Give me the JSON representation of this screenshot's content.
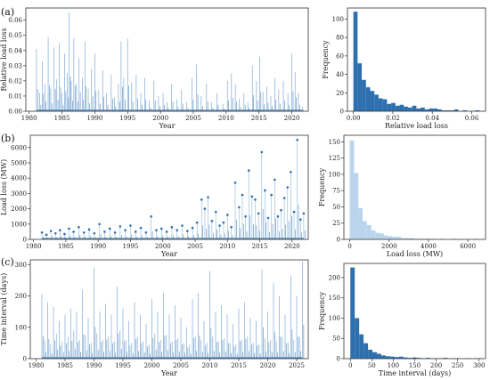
{
  "panels": [
    {
      "label": "(a)"
    },
    {
      "label": "(b)"
    },
    {
      "label": "(c)"
    }
  ],
  "colors": {
    "dark_blue": "#2e6fae",
    "light_blue": "#b9d4ec",
    "line_blue": "#8fb6dd"
  },
  "chart_data": [
    {
      "id": "a_ts",
      "panel": "a",
      "type": "bar",
      "style": "spikes",
      "xlabel": "Year",
      "ylabel": "Relative load loss",
      "xlim": [
        1979.5,
        2022.5
      ],
      "ylim": [
        0,
        0.068
      ],
      "xticks": [
        1980,
        1985,
        1990,
        1995,
        2000,
        2005,
        2010,
        2015,
        2020
      ],
      "yticks": [
        0.0,
        0.01,
        0.02,
        0.03,
        0.04,
        0.05,
        0.06
      ],
      "ytick_labels": [
        "0.00",
        "0.01",
        "0.02",
        "0.03",
        "0.04",
        "0.05",
        "0.06"
      ],
      "x": [
        1981.1,
        1981.6,
        1982.0,
        1982.4,
        1982.9,
        1983.3,
        1983.8,
        1984.2,
        1984.6,
        1985.0,
        1985.4,
        1985.8,
        1986.1,
        1986.4,
        1986.8,
        1987.2,
        1987.6,
        1988.1,
        1988.5,
        1989.0,
        1989.5,
        1990.0,
        1990.6,
        1991.2,
        1991.8,
        1992.5,
        1993.0,
        1993.6,
        1994.0,
        1994.4,
        1995.0,
        1995.6,
        1996.3,
        1997.0,
        1997.6,
        1998.3,
        1999.0,
        1999.7,
        2000.4,
        2001.0,
        2001.7,
        2002.5,
        2003.2,
        2004.0,
        2004.8,
        2005.5,
        2006.2,
        2007.0,
        2007.8,
        2008.6,
        2009.5,
        2010.2,
        2010.8,
        2011.4,
        2012.0,
        2012.7,
        2013.3,
        2014.0,
        2014.6,
        2015.1,
        2015.6,
        2016.2,
        2016.8,
        2017.4,
        2018.0,
        2018.7,
        2019.4,
        2020.0,
        2020.5,
        2021.0,
        2021.6
      ],
      "values": [
        0.041,
        0.012,
        0.033,
        0.018,
        0.049,
        0.015,
        0.042,
        0.021,
        0.045,
        0.012,
        0.038,
        0.025,
        0.065,
        0.02,
        0.048,
        0.018,
        0.035,
        0.022,
        0.046,
        0.015,
        0.028,
        0.038,
        0.014,
        0.027,
        0.012,
        0.024,
        0.009,
        0.018,
        0.046,
        0.022,
        0.048,
        0.019,
        0.024,
        0.012,
        0.022,
        0.007,
        0.02,
        0.01,
        0.012,
        0.006,
        0.018,
        0.008,
        0.014,
        0.006,
        0.022,
        0.031,
        0.01,
        0.018,
        0.006,
        0.012,
        0.005,
        0.02,
        0.025,
        0.018,
        0.008,
        0.012,
        0.006,
        0.03,
        0.02,
        0.036,
        0.013,
        0.016,
        0.01,
        0.022,
        0.014,
        0.02,
        0.012,
        0.038,
        0.026,
        0.012,
        0.003
      ]
    },
    {
      "id": "a_hist",
      "panel": "a",
      "type": "bar",
      "style": "histogram",
      "xlabel": "Relative load loss",
      "ylabel": "Frequency",
      "xlim": [
        -0.003,
        0.067
      ],
      "ylim": [
        0,
        112
      ],
      "xticks": [
        0.0,
        0.02,
        0.04,
        0.06
      ],
      "xtick_labels": [
        "0.00",
        "0.02",
        "0.04",
        "0.06"
      ],
      "yticks": [
        0,
        20,
        40,
        60,
        80,
        100
      ],
      "bin_start": 0.0,
      "bin_width": 0.00213,
      "values": [
        108,
        52,
        34,
        26,
        22,
        18,
        14,
        13,
        8,
        9,
        6,
        7,
        5,
        4,
        6,
        3,
        4,
        2,
        3,
        3,
        2,
        1,
        1,
        1,
        2,
        0,
        1,
        0,
        0,
        1
      ]
    },
    {
      "id": "b_ts",
      "panel": "b",
      "type": "scatter",
      "style": "stems",
      "xlabel": "Year",
      "ylabel": "Load loss (MW)",
      "xlim": [
        1979.5,
        2022.5
      ],
      "ylim": [
        0,
        6800
      ],
      "xticks": [
        1980,
        1985,
        1990,
        1995,
        2000,
        2005,
        2010,
        2015,
        2020
      ],
      "yticks": [
        0,
        1000,
        2000,
        3000,
        4000,
        5000,
        6000
      ],
      "x": [
        1981.3,
        1982.0,
        1982.7,
        1983.4,
        1984.1,
        1984.8,
        1985.5,
        1986.2,
        1987.0,
        1987.8,
        1988.6,
        1989.4,
        1990.2,
        1991.0,
        1991.8,
        1992.6,
        1993.4,
        1994.2,
        1995.0,
        1995.8,
        1996.6,
        1997.4,
        1998.2,
        1999.0,
        1999.8,
        2000.6,
        2001.4,
        2002.2,
        2003.0,
        2003.8,
        2004.6,
        2005.3,
        2006.0,
        2006.5,
        2007.0,
        2007.6,
        2008.2,
        2008.8,
        2009.4,
        2010.0,
        2010.6,
        2011.2,
        2011.8,
        2012.3,
        2012.8,
        2013.3,
        2013.8,
        2014.3,
        2014.8,
        2015.3,
        2015.8,
        2016.3,
        2016.8,
        2017.3,
        2017.8,
        2018.3,
        2018.8,
        2019.3,
        2019.8,
        2020.3,
        2020.8,
        2021.3,
        2021.8
      ],
      "values": [
        450,
        300,
        550,
        400,
        600,
        350,
        700,
        500,
        800,
        450,
        650,
        400,
        1000,
        500,
        700,
        450,
        850,
        600,
        900,
        500,
        750,
        450,
        1500,
        600,
        700,
        500,
        800,
        600,
        900,
        550,
        750,
        1100,
        2600,
        2000,
        2750,
        1200,
        1800,
        900,
        1100,
        1600,
        800,
        3700,
        2100,
        2900,
        1500,
        4500,
        2800,
        2600,
        1700,
        5700,
        3200,
        1400,
        2900,
        3900,
        1500,
        1900,
        2700,
        3400,
        4400,
        1800,
        6500,
        1300,
        1700
      ]
    },
    {
      "id": "b_hist",
      "panel": "b",
      "type": "bar",
      "style": "histogram",
      "xlabel": "Load loss (MW)",
      "ylabel": "Frequency",
      "xlim": [
        -300,
        6900
      ],
      "ylim": [
        0,
        160
      ],
      "xticks": [
        0,
        2000,
        4000,
        6000
      ],
      "yticks": [
        0,
        25,
        50,
        75,
        100,
        125,
        150
      ],
      "bin_start": 0,
      "bin_width": 217,
      "values": [
        152,
        102,
        48,
        28,
        22,
        14,
        10,
        9,
        6,
        5,
        4,
        4,
        2,
        2,
        2,
        1,
        1,
        1,
        1,
        1,
        0,
        1,
        0,
        0,
        1,
        0,
        0,
        0,
        0,
        1
      ]
    },
    {
      "id": "c_ts",
      "panel": "c",
      "type": "bar",
      "style": "spikes",
      "xlabel": "Year",
      "ylabel": "Time interval (days)",
      "xlim": [
        1979.0,
        2027.0
      ],
      "ylim": [
        0,
        315
      ],
      "xticks": [
        1980,
        1985,
        1990,
        1995,
        2000,
        2005,
        2010,
        2015,
        2020,
        2025
      ],
      "yticks": [
        0,
        100,
        200,
        300
      ],
      "x": [
        1981.0,
        1981.5,
        1982.0,
        1982.5,
        1983.0,
        1983.5,
        1984.0,
        1984.5,
        1985.0,
        1985.5,
        1986.0,
        1986.5,
        1987.0,
        1987.5,
        1988.0,
        1988.5,
        1989.0,
        1989.5,
        1990.0,
        1990.5,
        1991.0,
        1991.5,
        1992.0,
        1992.5,
        1993.0,
        1993.5,
        1994.0,
        1994.5,
        1995.0,
        1995.5,
        1996.0,
        1996.5,
        1997.0,
        1997.5,
        1998.0,
        1998.5,
        1999.0,
        1999.5,
        2000.0,
        2000.5,
        2001.0,
        2001.5,
        2002.0,
        2002.5,
        2003.0,
        2003.5,
        2004.0,
        2004.5,
        2005.0,
        2005.5,
        2006.0,
        2006.5,
        2007.0,
        2007.5,
        2008.0,
        2008.5,
        2009.0,
        2009.5,
        2010.0,
        2010.5,
        2011.0,
        2011.5,
        2012.0,
        2012.5,
        2013.0,
        2013.5,
        2014.0,
        2014.5,
        2015.0,
        2015.5,
        2016.0,
        2016.5,
        2017.0,
        2017.5,
        2018.0,
        2018.5,
        2019.0,
        2019.5,
        2020.0,
        2020.5,
        2021.0,
        2021.5,
        2022.0,
        2022.5,
        2023.0,
        2023.5,
        2024.0,
        2024.5,
        2025.0,
        2025.5,
        2026.0
      ],
      "values": [
        205,
        60,
        180,
        45,
        165,
        80,
        120,
        55,
        140,
        70,
        160,
        90,
        150,
        60,
        220,
        75,
        130,
        50,
        290,
        80,
        150,
        60,
        175,
        70,
        140,
        55,
        230,
        90,
        160,
        60,
        120,
        50,
        180,
        70,
        140,
        55,
        110,
        45,
        190,
        80,
        150,
        60,
        210,
        75,
        140,
        55,
        170,
        65,
        130,
        50,
        100,
        45,
        190,
        70,
        210,
        60,
        120,
        50,
        280,
        70,
        150,
        55,
        170,
        65,
        140,
        50,
        110,
        45,
        160,
        60,
        180,
        70,
        130,
        50,
        120,
        45,
        285,
        65,
        150,
        60,
        240,
        55,
        200,
        70,
        140,
        50,
        265,
        60,
        200,
        70,
        310
      ]
    },
    {
      "id": "c_hist",
      "panel": "c",
      "type": "bar",
      "style": "histogram",
      "xlabel": "Time interval (days)",
      "ylabel": "Frequency",
      "xlim": [
        -15,
        315
      ],
      "ylim": [
        0,
        235
      ],
      "xticks": [
        0,
        50,
        100,
        150,
        200,
        250,
        300
      ],
      "yticks": [
        0,
        50,
        100,
        150,
        200
      ],
      "bin_start": 0,
      "bin_width": 10.3,
      "values": [
        225,
        100,
        60,
        38,
        22,
        16,
        12,
        8,
        6,
        5,
        4,
        5,
        3,
        2,
        3,
        2,
        1,
        2,
        1,
        1,
        1,
        2,
        0,
        1,
        1,
        0,
        1,
        0,
        1,
        1
      ]
    }
  ]
}
